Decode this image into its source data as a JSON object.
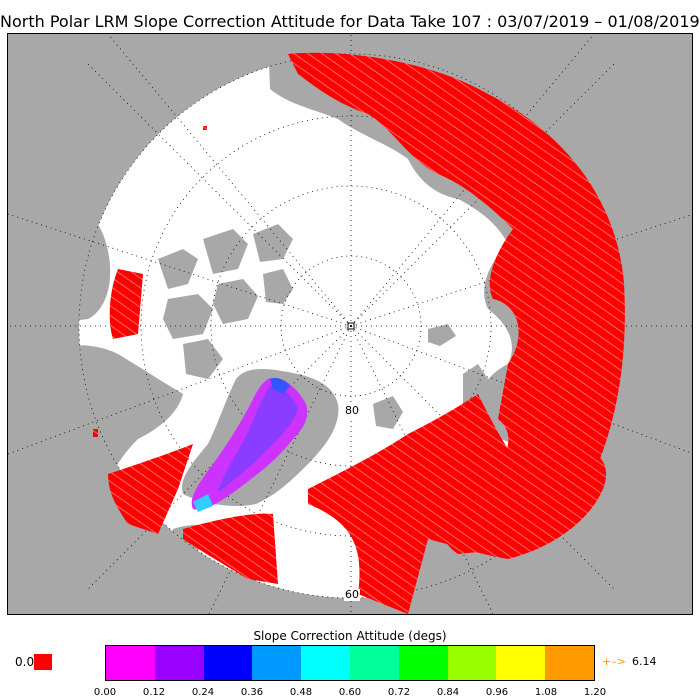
{
  "title": "North Polar LRM Slope Correction Attitude for Data Take 107 : 03/07/2019 – 01/08/2019",
  "map": {
    "projection": "north polar stereographic",
    "ocean_color": "#ffffff",
    "land_color": "#a8a8a8",
    "track_color": "#ff0000",
    "graticule_style": "dotted",
    "lat_labels": [
      "80",
      "60"
    ]
  },
  "legend": {
    "title": "Slope Correction Attitude (degs)",
    "under_label": "0.0",
    "under_color": "#ff0000",
    "ticks": [
      "0.00",
      "0.12",
      "0.24",
      "0.36",
      "0.48",
      "0.60",
      "0.72",
      "0.84",
      "0.96",
      "1.08",
      "1.20"
    ],
    "colors": [
      "#ff00ff",
      "#9900ff",
      "#0000ff",
      "#0099ff",
      "#00ffff",
      "#00ff99",
      "#00ff00",
      "#99ff00",
      "#ffff00",
      "#ff9900"
    ],
    "over_arrow": "+–>",
    "over_value": "6.14",
    "over_color": "#ff9900"
  }
}
